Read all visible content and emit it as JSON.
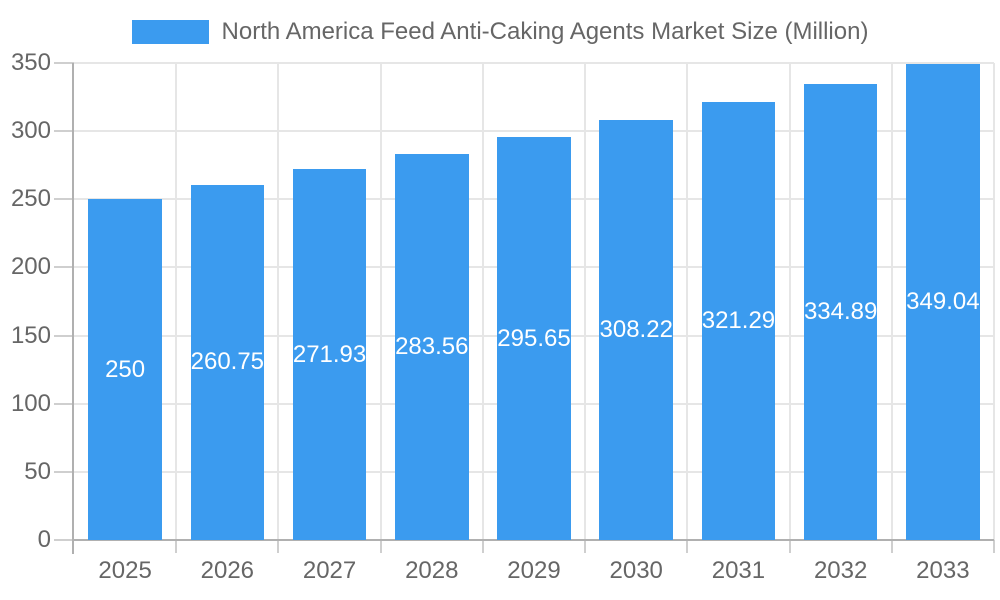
{
  "legend": {
    "label": "North America Feed Anti-Caking Agents Market Size (Million)"
  },
  "colors": {
    "bar": "#3B9BEF",
    "grid": "#e6e6e6",
    "tick": "#cfcfcf",
    "axis": "#b0b0b0",
    "tick_label": "#666666",
    "data_label": "#ffffff",
    "legend_text": "#666666",
    "background": "#ffffff"
  },
  "chart_data": {
    "type": "bar",
    "title": "North America Feed Anti-Caking Agents Market Size (Million)",
    "categories": [
      "2025",
      "2026",
      "2027",
      "2028",
      "2029",
      "2030",
      "2031",
      "2032",
      "2033"
    ],
    "series": [
      {
        "name": "North America Feed Anti-Caking Agents Market Size (Million)",
        "values": [
          250,
          260.75,
          271.93,
          283.56,
          295.65,
          308.22,
          321.29,
          334.89,
          349.04
        ]
      }
    ],
    "data_labels": [
      "250",
      "260.75",
      "271.93",
      "283.56",
      "295.65",
      "308.22",
      "321.29",
      "334.89",
      "349.04"
    ],
    "xlabel": "",
    "ylabel": "",
    "ylim": [
      0,
      350
    ],
    "ytick_step": 50,
    "grid": true,
    "legend_position": "top",
    "data_label_position": "center-of-bar"
  }
}
